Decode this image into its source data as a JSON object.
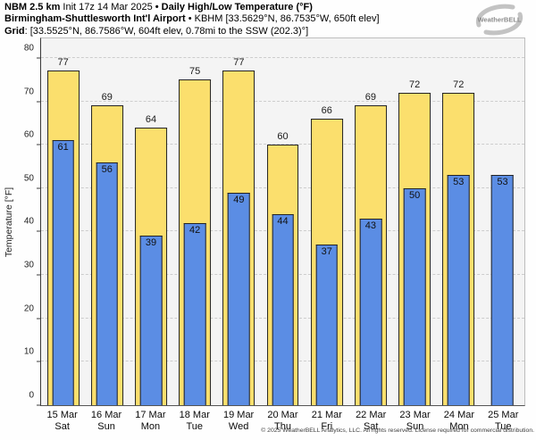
{
  "header": {
    "line1_bold1": "NBM 2.5 km",
    "line1_regular": " Init 17z 14 Mar 2025 ",
    "line1_bold2": "• Daily High/Low Temperature (°F)",
    "line2_bold": "Birmingham-Shuttlesworth Int'l Airport",
    "line2_regular": " • KBHM [33.5629°N, 86.7535°W, 650ft elev]",
    "line3_bold": "Grid",
    "line3_regular": ": [33.5525°N, 86.7586°W, 604ft elev, 0.78mi to the SSW (202.3)°]"
  },
  "logo": {
    "text": "WeatherBELL"
  },
  "chart_data": {
    "type": "bar",
    "title": "Daily High/Low Temperature (°F)",
    "xlabel": "",
    "ylabel": "Temperature [°F]",
    "ylim": [
      0,
      84.5
    ],
    "yticks": [
      0,
      10,
      20,
      30,
      40,
      50,
      60,
      70,
      80
    ],
    "grid": "horizontal dashed gridlines at each y tick",
    "legend_position": "none",
    "categories": [
      "15 Mar",
      "16 Mar",
      "17 Mar",
      "18 Mar",
      "19 Mar",
      "20 Mar",
      "21 Mar",
      "22 Mar",
      "23 Mar",
      "24 Mar",
      "25 Mar"
    ],
    "weekdays": [
      "Sat",
      "Sun",
      "Mon",
      "Tue",
      "Wed",
      "Thu",
      "Fri",
      "Sat",
      "Sun",
      "Mon",
      "Tue"
    ],
    "series": [
      {
        "name": "Daily High",
        "color": "#fbdf6d",
        "values": [
          77,
          69,
          64,
          75,
          77,
          60,
          66,
          69,
          72,
          72,
          null
        ]
      },
      {
        "name": "Daily Low",
        "color": "#5b8de4",
        "values": [
          61,
          56,
          39,
          42,
          49,
          44,
          37,
          43,
          50,
          53,
          53
        ]
      }
    ]
  },
  "footer": "© 2025 WeatherBELL Analytics, LLC. All rights reserved. License required for commercial distribution.",
  "colors": {
    "high_fill": "#fbdf6d",
    "low_fill": "#5b8de4",
    "bar_border": "#232323",
    "plot_bg": "#f4f4f4",
    "gridline": "#cdcdcd"
  }
}
